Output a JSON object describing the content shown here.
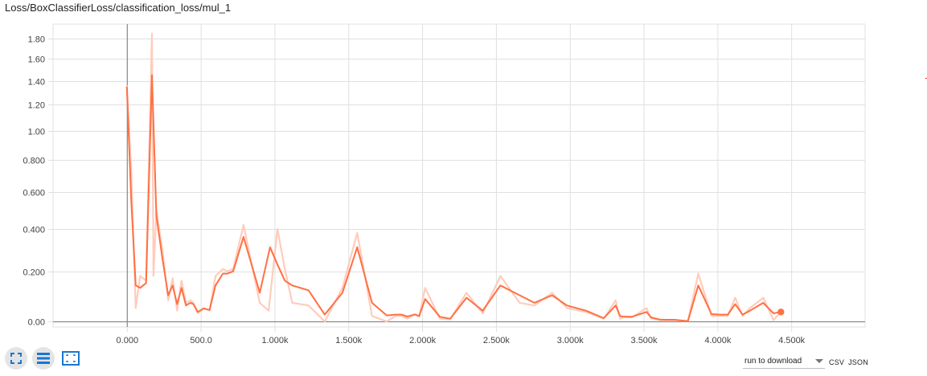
{
  "title": "Loss/BoxClassifierLoss/classification_loss/mul_1",
  "colors": {
    "series": "#ff7043",
    "series_light": "#ffccbc",
    "grid": "#e0e0e0",
    "axis": "#9e9e9e",
    "zero_line": "#8a8a8a"
  },
  "toolbar": {
    "expand_icon": "fullscreen-icon",
    "log_icon": "data-series-icon",
    "fit_icon": "fit-domain-icon"
  },
  "download": {
    "select_label": "run to download",
    "csv_label": "CSV",
    "json_label": "JSON"
  },
  "chart_data": {
    "type": "line",
    "title": "Loss/BoxClassifierLoss/classification_loss/mul_1",
    "xlabel": "",
    "ylabel": "",
    "x_tick_labels": [
      "0.000",
      "500.0",
      "1.000k",
      "1.500k",
      "2.000k",
      "2.500k",
      "3.000k",
      "3.500k",
      "4.000k",
      "4.500k"
    ],
    "x_ticks": [
      0,
      500,
      1000,
      1500,
      2000,
      2500,
      3000,
      3500,
      4000,
      4500
    ],
    "y_tick_labels": [
      "0.00",
      "0.200",
      "0.400",
      "0.600",
      "0.800",
      "1.00",
      "1.20",
      "1.40",
      "1.60",
      "1.80"
    ],
    "y_ticks": [
      0,
      0.2,
      0.4,
      0.6,
      0.8,
      1.0,
      1.2,
      1.4,
      1.6,
      1.8
    ],
    "y_scale": "log1p",
    "xlim": [
      -500,
      5000
    ],
    "ylim": [
      -0.02,
      1.95
    ],
    "grid": true,
    "series": [
      {
        "role": "smoothed",
        "x": [
          0,
          30,
          60,
          90,
          130,
          170,
          200,
          240,
          280,
          310,
          340,
          370,
          400,
          430,
          450,
          480,
          520,
          560,
          600,
          650,
          680,
          720,
          790,
          900,
          970,
          1020,
          1070,
          1120,
          1230,
          1340,
          1460,
          1560,
          1660,
          1760,
          1820,
          1860,
          1900,
          1950,
          1980,
          2020,
          2120,
          2190,
          2300,
          2410,
          2530,
          2660,
          2760,
          2880,
          2980,
          3110,
          3230,
          3310,
          3340,
          3360,
          3420,
          3520,
          3550,
          3570,
          3610,
          3650,
          3710,
          3800,
          3870,
          3960,
          4020,
          4070,
          4120,
          4170,
          4220,
          4310,
          4380,
          4430
        ],
        "y": [
          1.35,
          0.55,
          0.14,
          0.13,
          0.15,
          1.45,
          0.47,
          0.26,
          0.1,
          0.14,
          0.065,
          0.13,
          0.06,
          0.07,
          0.065,
          0.035,
          0.048,
          0.043,
          0.14,
          0.19,
          0.19,
          0.2,
          0.36,
          0.11,
          0.31,
          0.23,
          0.16,
          0.14,
          0.12,
          0.025,
          0.11,
          0.31,
          0.07,
          0.022,
          0.025,
          0.025,
          0.018,
          0.026,
          0.02,
          0.085,
          0.017,
          0.01,
          0.09,
          0.04,
          0.14,
          0.1,
          0.07,
          0.1,
          0.06,
          0.04,
          0.012,
          0.06,
          0.02,
          0.018,
          0.017,
          0.035,
          0.015,
          0.012,
          0.007,
          0.006,
          0.006,
          0.001,
          0.14,
          0.027,
          0.025,
          0.025,
          0.065,
          0.025,
          0.04,
          0.07,
          0.03,
          0.035
        ]
      },
      {
        "role": "raw",
        "x": [
          0,
          30,
          60,
          90,
          130,
          170,
          180,
          200,
          240,
          280,
          310,
          340,
          370,
          400,
          430,
          450,
          480,
          520,
          560,
          600,
          650,
          680,
          720,
          790,
          900,
          960,
          1020,
          1070,
          1120,
          1230,
          1340,
          1460,
          1560,
          1660,
          1760,
          1820,
          1860,
          1900,
          1950,
          1980,
          2020,
          2120,
          2190,
          2300,
          2410,
          2530,
          2660,
          2760,
          2880,
          2980,
          3110,
          3230,
          3310,
          3340,
          3360,
          3420,
          3520,
          3550,
          3570,
          3610,
          3650,
          3710,
          3800,
          3870,
          3960,
          4020,
          4070,
          4120,
          4170,
          4220,
          4310,
          4380,
          4430
        ],
        "y": [
          1.36,
          0.72,
          0.05,
          0.18,
          0.16,
          1.85,
          0.18,
          0.5,
          0.3,
          0.08,
          0.17,
          0.04,
          0.16,
          0.07,
          0.08,
          0.07,
          0.03,
          0.05,
          0.04,
          0.18,
          0.21,
          0.2,
          0.21,
          0.42,
          0.07,
          0.04,
          0.4,
          0.21,
          0.07,
          0.06,
          0.0,
          0.13,
          0.38,
          0.02,
          0.0,
          0.02,
          0.02,
          0.01,
          0.025,
          0.018,
          0.13,
          0.01,
          0.008,
          0.11,
          0.03,
          0.18,
          0.07,
          0.06,
          0.11,
          0.05,
          0.035,
          0.01,
          0.08,
          0.01,
          0.015,
          0.015,
          0.05,
          0.01,
          0.01,
          0.005,
          0.005,
          0.005,
          0.001,
          0.19,
          0.02,
          0.02,
          0.02,
          0.09,
          0.02,
          0.05,
          0.09,
          0.005,
          0.035
        ]
      }
    ],
    "last_point": {
      "x": 4430,
      "y": 0.035
    }
  }
}
